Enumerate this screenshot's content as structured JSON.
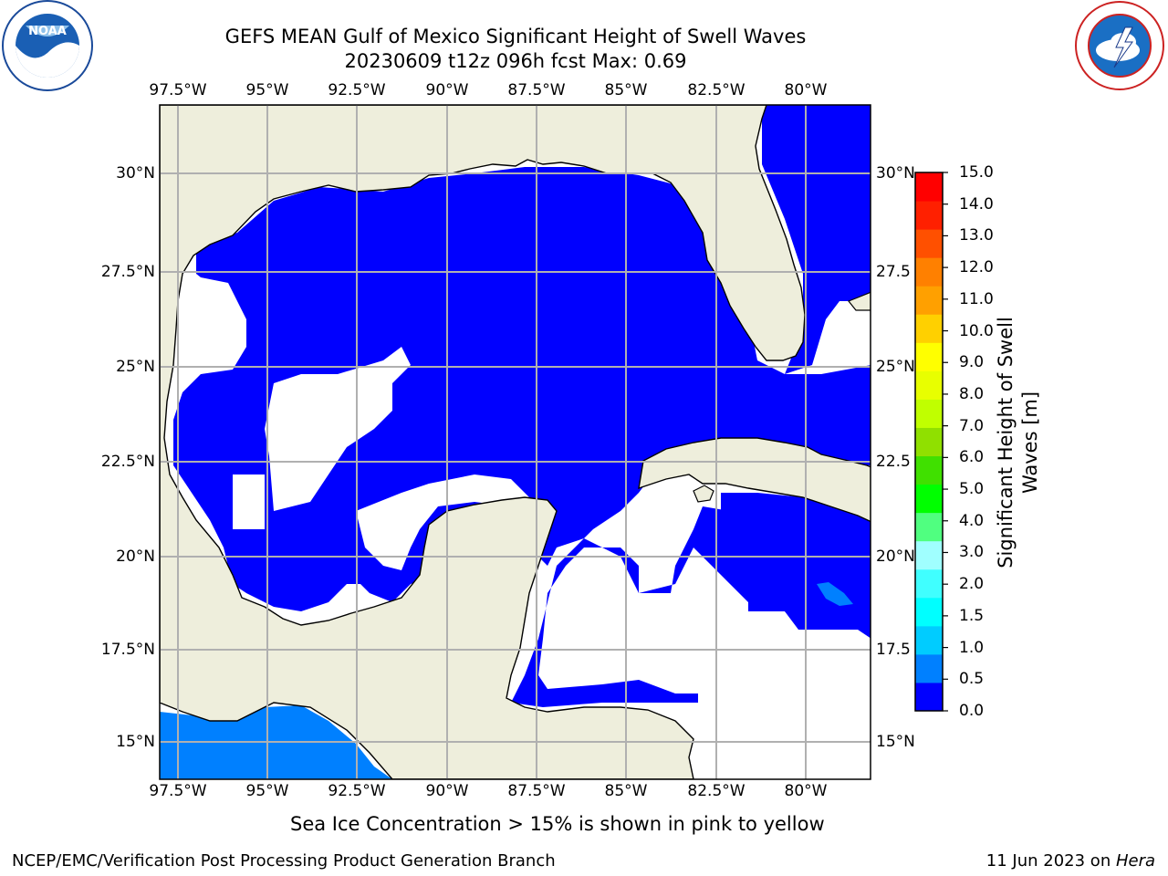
{
  "title": {
    "line1": "GEFS MEAN Gulf of Mexico Significant Height of Swell Waves",
    "line2": "20230609 t12z 096h fcst   Max: 0.69"
  },
  "logos": {
    "left": "noaa-logo",
    "right": "national-weather-service-logo"
  },
  "map": {
    "lon_labels": [
      "97.5°W",
      "95°W",
      "92.5°W",
      "90°W",
      "87.5°W",
      "85°W",
      "82.5°W",
      "80°W"
    ],
    "lat_labels_left": [
      "30°N",
      "27.5°N",
      "25°N",
      "22.5°N",
      "20°N",
      "17.5°N",
      "15°N"
    ],
    "lat_labels_right": [
      "30°N",
      "27.5",
      "25°N",
      "22.5",
      "20°N",
      "17.5",
      "15°N"
    ],
    "colors": {
      "land": "#eeeedc",
      "ocean_low": "#0000ff",
      "ocean_mid": "#0080ff",
      "gridline": "#b0b0b0"
    }
  },
  "colorbar": {
    "label_line1": "Significant Height of Swell",
    "label_line2": "Waves [m]",
    "ticks": [
      "15.0",
      "14.0",
      "13.0",
      "12.0",
      "11.0",
      "10.0",
      "9.0",
      "8.0",
      "7.0",
      "6.0",
      "5.0",
      "4.0",
      "3.0",
      "2.0",
      "1.5",
      "1.0",
      "0.5",
      "0.0"
    ],
    "colors_bottom_to_top": [
      "#0000ff",
      "#0080ff",
      "#00ccff",
      "#00ffff",
      "#40ffff",
      "#a0ffff",
      "#50ff80",
      "#00ff00",
      "#40e000",
      "#90e000",
      "#c0ff00",
      "#e8ff00",
      "#ffff00",
      "#ffd000",
      "#ffa000",
      "#ff8000",
      "#ff5000",
      "#ff2000",
      "#ff0000"
    ]
  },
  "notes": {
    "sea_ice": "Sea Ice Concentration > 15% is shown in pink to yellow"
  },
  "footer": {
    "left": "NCEP/EMC/Verification Post Processing Product Generation Branch",
    "right_prefix": "11 Jun 2023 on ",
    "right_host": "Hera"
  }
}
